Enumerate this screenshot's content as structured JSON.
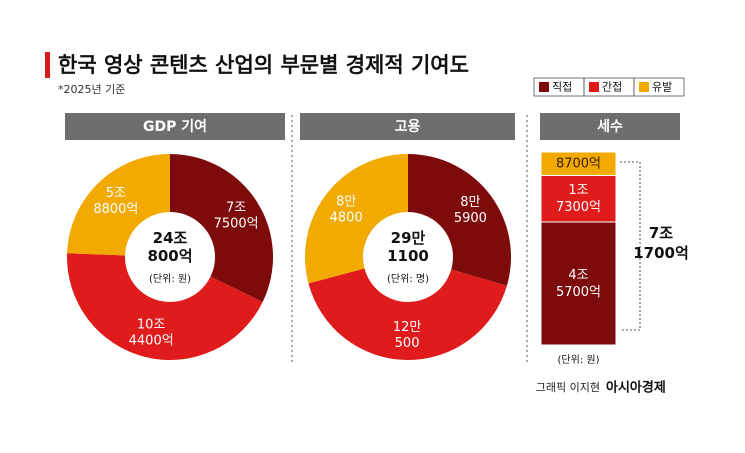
{
  "title": "한국 영상 콘텐츠 산업의 부문별 경제적 기여도",
  "note": "*2025년 기준",
  "legend": [
    {
      "name": "직접",
      "color": "#7d0b0b"
    },
    {
      "name": "간접",
      "color": "#e01b1b"
    },
    {
      "name": "유발",
      "color": "#f2a900"
    }
  ],
  "credit": {
    "author": "그래픽 이지현",
    "outlet": "아시아경제"
  },
  "chart_data": [
    {
      "type": "donut",
      "title": "GDP 기여",
      "values": [
        77500,
        104400,
        58800
      ],
      "value_labels": [
        [
          "7조",
          "7500억"
        ],
        [
          "10조",
          "4400억"
        ],
        [
          "5조",
          "8800억"
        ]
      ],
      "total": 240800,
      "total_label": [
        "24조",
        "800억"
      ],
      "unit": "(단위: 원)"
    },
    {
      "type": "donut",
      "title": "고용",
      "values": [
        85900,
        120500,
        84800
      ],
      "value_labels": [
        [
          "8만",
          "5900"
        ],
        [
          "12만",
          "500"
        ],
        [
          "8만",
          "4800"
        ]
      ],
      "total": 291100,
      "total_label": [
        "29만",
        "1100"
      ],
      "unit": "(단위: 명)"
    },
    {
      "type": "stacked_bar",
      "title": "세수",
      "values": [
        45700,
        17300,
        8700
      ],
      "value_labels": [
        [
          "4조",
          "5700억"
        ],
        [
          "1조",
          "7300억"
        ],
        [
          "8700억"
        ]
      ],
      "total": 71700,
      "total_label": [
        "7조",
        "1700억"
      ],
      "unit": "(단위: 원)"
    }
  ]
}
